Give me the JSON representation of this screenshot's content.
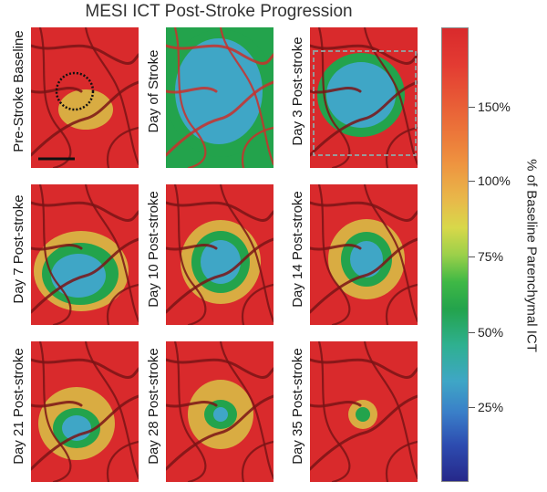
{
  "title": "MESI ICT Post-Stroke Progression",
  "panels": [
    {
      "label": "Pre-Stroke Baseline",
      "state": "baseline"
    },
    {
      "label": "Day of Stroke",
      "state": "stroke"
    },
    {
      "label": "Day 3 Post-stroke",
      "state": "day3"
    },
    {
      "label": "Day 7 Post-stroke",
      "state": "day7"
    },
    {
      "label": "Day 10 Post-stroke",
      "state": "day10"
    },
    {
      "label": "Day 14 Post-stroke",
      "state": "day14"
    },
    {
      "label": "Day 21 Post-stroke",
      "state": "day21"
    },
    {
      "label": "Day 28 Post-stroke",
      "state": "day28"
    },
    {
      "label": "Day 35 Post-stroke",
      "state": "day35"
    }
  ],
  "colorbar": {
    "title": "% of Baseline Parenchymal ICT",
    "ticks": [
      {
        "label": "25%",
        "value": 25
      },
      {
        "label": "50%",
        "value": 50
      },
      {
        "label": "75%",
        "value": 75
      },
      {
        "label": "100%",
        "value": 100
      },
      {
        "label": "150%",
        "value": 150
      }
    ],
    "colors": {
      "high": "#d92a2c",
      "mid_high": "#ec7a3a",
      "mid": "#d8d84a",
      "low_mid": "#23a34c",
      "low": "#3fa6c6",
      "lowest": "#26288a"
    }
  }
}
